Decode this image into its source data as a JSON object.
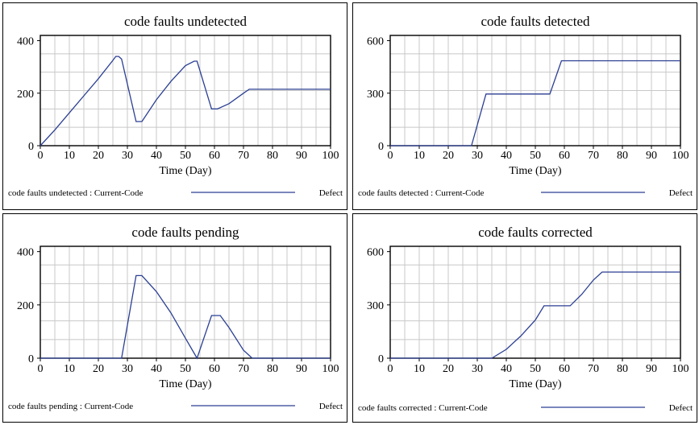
{
  "series_color": "#2b3f93",
  "chart_data": [
    {
      "type": "line",
      "title": "code faults undetected",
      "xlabel": "Time (Day)",
      "xlim": [
        0,
        100
      ],
      "ylim": [
        0,
        420
      ],
      "xticks": [
        0,
        10,
        20,
        30,
        40,
        50,
        60,
        70,
        80,
        90,
        100
      ],
      "yticks": [
        0,
        200,
        400
      ],
      "grid": true,
      "legend": {
        "series_label": "code faults undetected : Current-Code",
        "unit": "Defect"
      },
      "series": [
        {
          "x": [
            0,
            5,
            10,
            15,
            20,
            25,
            26,
            27,
            28,
            33,
            35,
            40,
            45,
            50,
            53,
            54,
            59,
            61,
            65,
            70,
            72,
            75,
            80,
            90,
            100
          ],
          "y": [
            0,
            60,
            125,
            190,
            255,
            325,
            340,
            340,
            330,
            92,
            92,
            175,
            245,
            305,
            322,
            322,
            140,
            140,
            160,
            200,
            215,
            215,
            215,
            215,
            215
          ]
        }
      ]
    },
    {
      "type": "line",
      "title": "code faults detected",
      "xlabel": "Time (Day)",
      "xlim": [
        0,
        100
      ],
      "ylim": [
        0,
        630
      ],
      "xticks": [
        0,
        10,
        20,
        30,
        40,
        50,
        60,
        70,
        80,
        90,
        100
      ],
      "yticks": [
        0,
        300,
        600
      ],
      "grid": true,
      "legend": {
        "series_label": "code faults detected : Current-Code",
        "unit": "Defect"
      },
      "series": [
        {
          "x": [
            0,
            28,
            33,
            40,
            50,
            55,
            59,
            60,
            70,
            80,
            90,
            100
          ],
          "y": [
            0,
            0,
            295,
            295,
            295,
            295,
            485,
            485,
            485,
            485,
            485,
            485
          ]
        }
      ]
    },
    {
      "type": "line",
      "title": "code faults pending",
      "xlabel": "Time (Day)",
      "xlim": [
        0,
        100
      ],
      "ylim": [
        0,
        420
      ],
      "xticks": [
        0,
        10,
        20,
        30,
        40,
        50,
        60,
        70,
        80,
        90,
        100
      ],
      "yticks": [
        0,
        200,
        400
      ],
      "grid": true,
      "legend": {
        "series_label": "code faults pending : Current-Code",
        "unit": "Defect"
      },
      "series": [
        {
          "x": [
            0,
            28,
            33,
            35,
            40,
            45,
            50,
            54,
            59,
            62,
            65,
            70,
            73,
            80,
            90,
            100
          ],
          "y": [
            0,
            0,
            310,
            310,
            250,
            170,
            75,
            0,
            160,
            160,
            115,
            30,
            0,
            0,
            0,
            0
          ]
        }
      ]
    },
    {
      "type": "line",
      "title": "code faults corrected",
      "xlabel": "Time (Day)",
      "xlim": [
        0,
        100
      ],
      "ylim": [
        0,
        630
      ],
      "xticks": [
        0,
        10,
        20,
        30,
        40,
        50,
        60,
        70,
        80,
        90,
        100
      ],
      "yticks": [
        0,
        300,
        600
      ],
      "grid": true,
      "legend": {
        "series_label": "code faults corrected : Current-Code",
        "unit": "Defect"
      },
      "series": [
        {
          "x": [
            0,
            35,
            40,
            45,
            50,
            53,
            55,
            60,
            62,
            66,
            70,
            73,
            80,
            90,
            100
          ],
          "y": [
            0,
            0,
            50,
            125,
            215,
            295,
            295,
            295,
            295,
            360,
            440,
            485,
            485,
            485,
            485
          ]
        }
      ]
    }
  ]
}
